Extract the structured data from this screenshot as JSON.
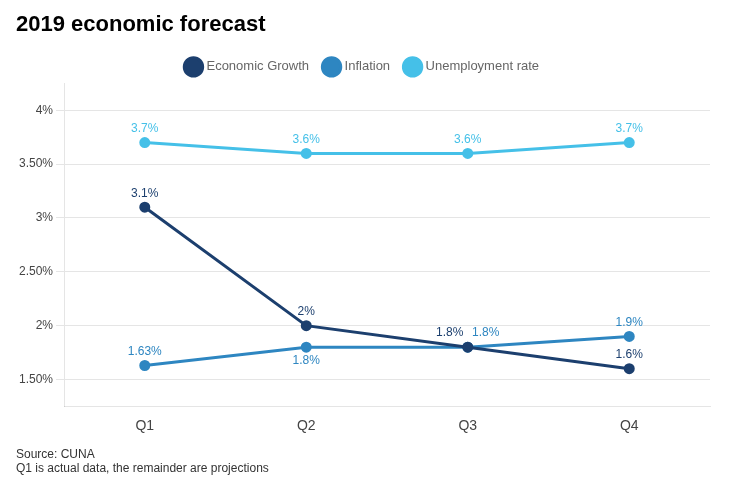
{
  "chart_data": {
    "type": "line",
    "title": "2019 economic forecast",
    "categories": [
      "Q1",
      "Q2",
      "Q3",
      "Q4"
    ],
    "series": [
      {
        "name": "Economic Growth",
        "color": "#1c3f6e",
        "values": [
          3.1,
          2.0,
          1.8,
          1.6
        ],
        "value_labels": [
          "3.1%",
          "2%",
          "1.8%",
          "1.6%"
        ]
      },
      {
        "name": "Inflation",
        "color": "#2e86c1",
        "values": [
          1.63,
          1.8,
          1.8,
          1.9
        ],
        "value_labels": [
          "1.63%",
          "1.8%",
          "1.8%",
          "1.9%"
        ]
      },
      {
        "name": "Unemployment rate",
        "color": "#45c0e8",
        "values": [
          3.7,
          3.6,
          3.6,
          3.7
        ],
        "value_labels": [
          "3.7%",
          "3.6%",
          "3.6%",
          "3.7%"
        ]
      }
    ],
    "ylim": [
      1.25,
      4.25
    ],
    "yticks": [
      {
        "value": 1.5,
        "label": "1.50%"
      },
      {
        "value": 2.0,
        "label": "2%"
      },
      {
        "value": 2.5,
        "label": "2.50%"
      },
      {
        "value": 3.0,
        "label": "3%"
      },
      {
        "value": 3.5,
        "label": "3.50%"
      },
      {
        "value": 4.0,
        "label": "4%"
      }
    ],
    "grid": "y",
    "legend": "top",
    "marker": "circle",
    "data_labels": true,
    "annotations": [
      "Source: CUNA",
      "Q1 is actual data, the remainder are projections"
    ]
  }
}
